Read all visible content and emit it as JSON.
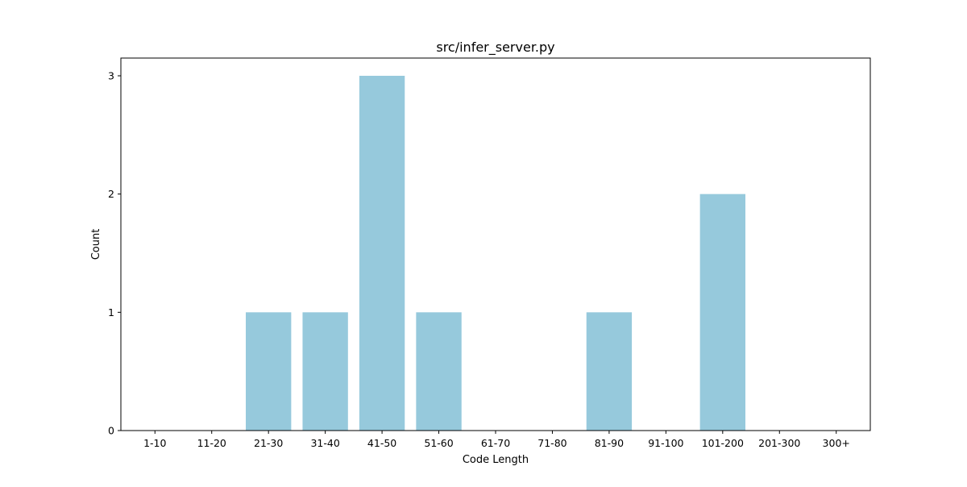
{
  "chart_data": {
    "type": "bar",
    "title": "src/infer_server.py",
    "xlabel": "Code Length",
    "ylabel": "Count",
    "categories": [
      "1-10",
      "11-20",
      "21-30",
      "31-40",
      "41-50",
      "51-60",
      "61-70",
      "71-80",
      "81-90",
      "91-100",
      "101-200",
      "201-300",
      "300+"
    ],
    "values": [
      0,
      0,
      1,
      1,
      3,
      1,
      0,
      0,
      1,
      0,
      2,
      0,
      0
    ],
    "yticks": [
      0,
      1,
      2,
      3
    ],
    "ylim": [
      0,
      3.15
    ],
    "bar_color": "#96c9dc",
    "grid": false,
    "legend": "none"
  }
}
